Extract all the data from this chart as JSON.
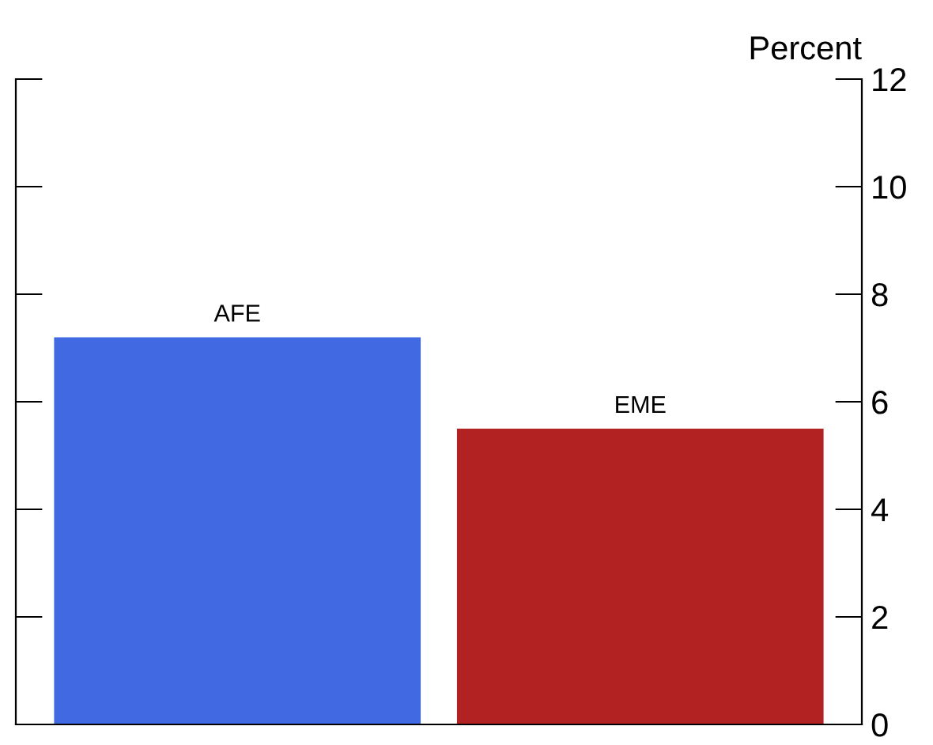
{
  "chart_data": {
    "type": "bar",
    "ylabel": "Percent",
    "categories": [
      "AFE",
      "EME"
    ],
    "values": [
      7.2,
      5.5
    ],
    "colors": [
      "#4169e1",
      "#b22222"
    ],
    "ylim": [
      0,
      12
    ],
    "yticks": [
      0,
      2,
      4,
      6,
      8,
      10,
      12
    ],
    "grid": false
  }
}
